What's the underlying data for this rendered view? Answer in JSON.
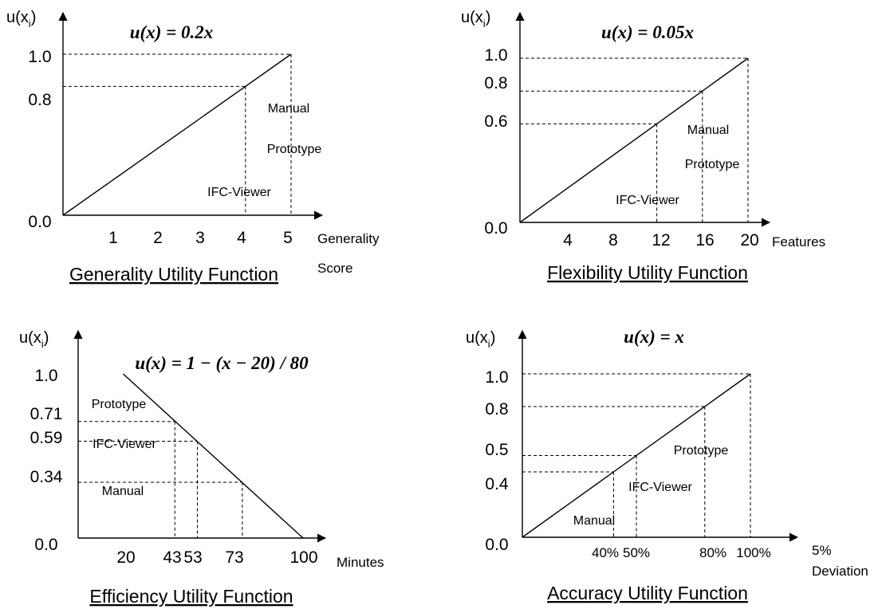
{
  "charts": [
    {
      "id": "generality",
      "caption": "Generality Utility Function",
      "ylabel_main": "u(x",
      "ylabel_sub": "i",
      "ylabel_close": ")",
      "equation": "u(x) = 0.2x",
      "xlabel_line1": "Generality",
      "xlabel_line2": "Score",
      "y_ticks": [
        "0.0",
        "0.8",
        "1.0"
      ],
      "x_ticks": [
        "1",
        "2",
        "3",
        "4",
        "5"
      ],
      "annotations": [
        "Manual",
        "Prototype",
        "IFC-Viewer"
      ]
    },
    {
      "id": "flexibility",
      "caption": "Flexibility Utility Function",
      "ylabel_main": "u(x",
      "ylabel_sub": "i",
      "ylabel_close": ")",
      "equation": "u(x) = 0.05x",
      "xlabel_line1": "Features",
      "xlabel_line2": "",
      "y_ticks": [
        "0.0",
        "0.6",
        "0.8",
        "1.0"
      ],
      "x_ticks": [
        "4",
        "8",
        "12",
        "16",
        "20"
      ],
      "annotations": [
        "Manual",
        "Prototype",
        "IFC-Viewer"
      ]
    },
    {
      "id": "efficiency",
      "caption": "Efficiency Utility Function",
      "ylabel_main": "u(x",
      "ylabel_sub": "i",
      "ylabel_close": ")",
      "equation": "u(x) = 1 − (x − 20) / 80",
      "xlabel_line1": "Minutes",
      "xlabel_line2": "",
      "y_ticks": [
        "0.0",
        "0.34",
        "0.59",
        "0.71",
        "1.0"
      ],
      "x_ticks": [
        "20",
        "43",
        "53",
        "73",
        "100"
      ],
      "annotations": [
        "Prototype",
        "IFC-Viewer",
        "Manual"
      ]
    },
    {
      "id": "accuracy",
      "caption": "Accuracy Utility Function",
      "ylabel_main": "u(x",
      "ylabel_sub": "i",
      "ylabel_close": ")",
      "equation": "u(x) = x",
      "xlabel_line1": "5%",
      "xlabel_line2": "Deviation",
      "y_ticks": [
        "0.0",
        "0.4",
        "0.5",
        "0.8",
        "1.0"
      ],
      "x_ticks": [
        "40%",
        "50%",
        "80%",
        "100%"
      ],
      "annotations": [
        "Prototype",
        "IFC-Viewer",
        "Manual"
      ]
    }
  ],
  "chart_data": [
    {
      "type": "line",
      "title": "Generality Utility Function",
      "xlabel": "Generality Score",
      "ylabel": "u(xi)",
      "equation": "u(x) = 0.2x",
      "x": [
        0,
        5
      ],
      "y": [
        0.0,
        1.0
      ],
      "xlim": [
        0,
        5
      ],
      "ylim": [
        0,
        1
      ],
      "points": [
        {
          "label": "Manual",
          "x": 5,
          "y": 1.0
        },
        {
          "label": "Prototype",
          "x": 5,
          "y": 1.0
        },
        {
          "label": "IFC-Viewer",
          "x": 4,
          "y": 0.8
        }
      ]
    },
    {
      "type": "line",
      "title": "Flexibility Utility Function",
      "xlabel": "Features",
      "ylabel": "u(xi)",
      "equation": "u(x) = 0.05x",
      "x": [
        0,
        20
      ],
      "y": [
        0.0,
        1.0
      ],
      "xlim": [
        0,
        20
      ],
      "ylim": [
        0,
        1
      ],
      "points": [
        {
          "label": "Manual",
          "x": 20,
          "y": 1.0
        },
        {
          "label": "Prototype",
          "x": 16,
          "y": 0.8
        },
        {
          "label": "IFC-Viewer",
          "x": 12,
          "y": 0.6
        }
      ]
    },
    {
      "type": "line",
      "title": "Efficiency Utility Function",
      "xlabel": "Minutes",
      "ylabel": "u(xi)",
      "equation": "u(x) = 1 - (x - 20)/80",
      "x": [
        20,
        100
      ],
      "y": [
        1.0,
        0.0
      ],
      "xlim": [
        0,
        100
      ],
      "ylim": [
        0,
        1
      ],
      "points": [
        {
          "label": "Prototype",
          "x": 43,
          "y": 0.71
        },
        {
          "label": "IFC-Viewer",
          "x": 53,
          "y": 0.59
        },
        {
          "label": "Manual",
          "x": 73,
          "y": 0.34
        }
      ]
    },
    {
      "type": "line",
      "title": "Accuracy Utility Function",
      "xlabel": "5% Deviation",
      "ylabel": "u(xi)",
      "equation": "u(x) = x",
      "x": [
        0,
        100
      ],
      "y": [
        0.0,
        1.0
      ],
      "xlim": [
        0,
        100
      ],
      "ylim": [
        0,
        1
      ],
      "points": [
        {
          "label": "Manual",
          "x": 40,
          "y": 0.4
        },
        {
          "label": "IFC-Viewer",
          "x": 50,
          "y": 0.5
        },
        {
          "label": "Prototype",
          "x": 80,
          "y": 0.8
        }
      ]
    }
  ]
}
